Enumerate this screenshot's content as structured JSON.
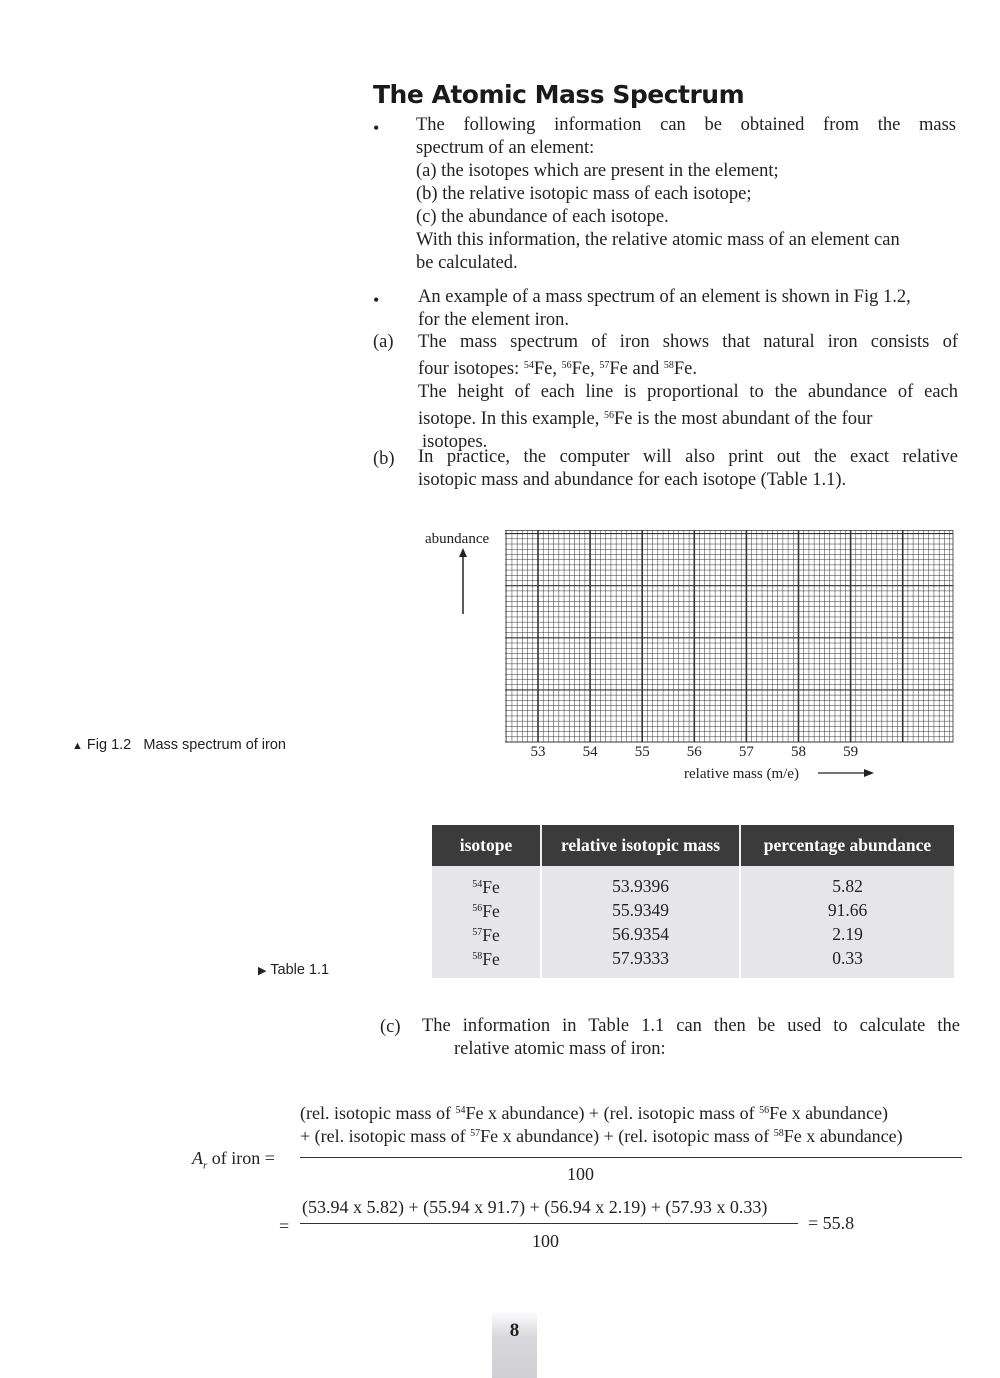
{
  "title": "The Atomic Mass Spectrum",
  "bullet1": {
    "intro_1": "The following information can be obtained from the mass",
    "intro_2": "spectrum of an element:",
    "items": [
      "(a)  the isotopes which are present in the element;",
      "(b)  the relative isotopic mass of each isotope;",
      "(c)  the abundance of each isotope."
    ],
    "outro_1": "With this information, the relative atomic mass of an element can",
    "outro_2": "be calculated."
  },
  "bullet2": {
    "line1": "An example of a mass spectrum of an element is shown in Fig 1.2,",
    "line2": "for the element iron."
  },
  "para_a": {
    "marker": "(a)",
    "line1": "The mass spectrum of iron shows that natural iron consists of",
    "line2_prefix": "four isotopes: ",
    "isotopes": [
      "54",
      "56",
      "57",
      "58"
    ],
    "element": "Fe",
    "line3": "The height of each line is proportional to the abundance of each",
    "line4_prefix": "isotope. In this example, ",
    "line4_suffix": "Fe is the most abundant of the four",
    "line5": "isotopes."
  },
  "para_b": {
    "marker": "(b)",
    "line1": "In practice, the computer will also print out the exact relative",
    "line2": "isotopic mass and abundance for each isotope (Table 1.1)."
  },
  "chart_data": {
    "type": "grid",
    "ylabel": "abundance",
    "xlabel": "relative mass (m/e)",
    "x_ticks": [
      "53",
      "54",
      "55",
      "56",
      "57",
      "58",
      "59"
    ],
    "grid": true,
    "grid_color": "#333333"
  },
  "fig_caption": {
    "marker": "▲",
    "label": "Fig 1.2",
    "text": "Mass spectrum of iron"
  },
  "table_caption": {
    "marker": "▶",
    "text": "Table 1.1"
  },
  "table": {
    "headers": [
      "isotope",
      "relative isotopic mass",
      "percentage abundance"
    ],
    "rows": [
      {
        "mass_number": "54",
        "element": "Fe",
        "mass": "53.9396",
        "abundance": "5.82"
      },
      {
        "mass_number": "56",
        "element": "Fe",
        "mass": "55.9349",
        "abundance": "91.66"
      },
      {
        "mass_number": "57",
        "element": "Fe",
        "mass": "56.9354",
        "abundance": "2.19"
      },
      {
        "mass_number": "58",
        "element": "Fe",
        "mass": "57.9333",
        "abundance": "0.33"
      }
    ],
    "header_color": "#3b3b3b",
    "body_color": "#e6e6e9"
  },
  "para_c": {
    "marker": "(c)",
    "line1": "The information in Table 1.1 can then be used to calculate the",
    "line2": "relative atomic mass of iron:"
  },
  "equation": {
    "lhs_symbol": "A",
    "lhs_sub": "r",
    "lhs_text": " of iron =",
    "num1_a": "(rel. isotopic mass of ",
    "num1_b": "Fe x abundance) + (rel. isotopic mass of ",
    "num1_c": "Fe x abundance)",
    "num2_a": "+ (rel. isotopic mass of ",
    "num2_b": "Fe x abundance) + (rel. isotopic mass of ",
    "num2_c": "Fe x abundance)",
    "denominator": "100",
    "eq2_sign": "=",
    "eq2_numerator": "(53.94 x 5.82) + (55.94 x 91.7) + (56.94 x 2.19) + (57.93 x 0.33)",
    "eq2_denominator": "100",
    "result": "= 55.8"
  },
  "page_number": "8"
}
